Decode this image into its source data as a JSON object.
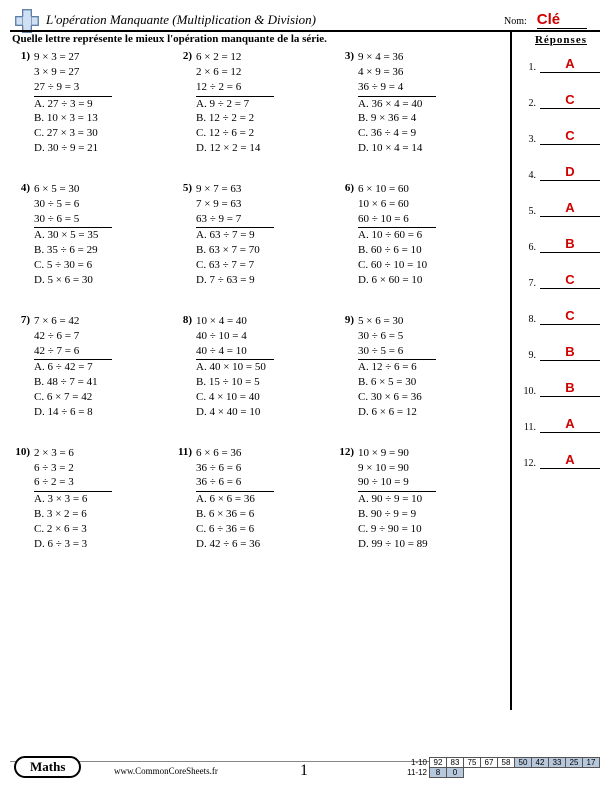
{
  "header": {
    "title": "L'opération Manquante (Multiplication & Division)",
    "nom_label": "Nom:",
    "cle": "Clé"
  },
  "instruction": "Quelle lettre représente le mieux l'opération manquante de la série.",
  "problems": [
    {
      "n": "1)",
      "lines": [
        "9 × 3 = 27",
        "3 × 9 = 27",
        "27 ÷ 9 = 3"
      ],
      "choices": [
        "A. 27 ÷ 3 = 9",
        "B. 10 × 3 = 13",
        "C. 27 × 3 = 30",
        "D. 30 ÷ 9 = 21"
      ]
    },
    {
      "n": "2)",
      "lines": [
        "6 × 2 = 12",
        "2 × 6 = 12",
        "12 ÷ 2 = 6"
      ],
      "choices": [
        "A. 9 ÷ 2 = 7",
        "B. 12 ÷ 2 = 2",
        "C. 12 ÷ 6 = 2",
        "D. 12 × 2 = 14"
      ]
    },
    {
      "n": "3)",
      "lines": [
        "9 × 4 = 36",
        "4 × 9 = 36",
        "36 ÷ 9 = 4"
      ],
      "choices": [
        "A. 36 × 4 = 40",
        "B. 9 × 36 = 4",
        "C. 36 ÷ 4 = 9",
        "D. 10 × 4 = 14"
      ]
    },
    {
      "n": "4)",
      "lines": [
        "6 × 5 = 30",
        "30 ÷ 5 = 6",
        "30 ÷ 6 = 5"
      ],
      "choices": [
        "A. 30 × 5 = 35",
        "B. 35 ÷ 6 = 29",
        "C. 5 ÷ 30 = 6",
        "D. 5 × 6 = 30"
      ]
    },
    {
      "n": "5)",
      "lines": [
        "9 × 7 = 63",
        "7 × 9 = 63",
        "63 ÷ 9 = 7"
      ],
      "choices": [
        "A. 63 ÷ 7 = 9",
        "B. 63 × 7 = 70",
        "C. 63 ÷ 7 = 7",
        "D. 7 ÷ 63 = 9"
      ]
    },
    {
      "n": "6)",
      "lines": [
        "6 × 10 = 60",
        "10 × 6 = 60",
        "60 ÷ 10 = 6"
      ],
      "choices": [
        "A. 10 ÷ 60 = 6",
        "B. 60 ÷ 6 = 10",
        "C. 60 ÷ 10 = 10",
        "D. 6 × 60 = 10"
      ]
    },
    {
      "n": "7)",
      "lines": [
        "7 × 6 = 42",
        "42 ÷ 6 = 7",
        "42 ÷ 7 = 6"
      ],
      "choices": [
        "A. 6 ÷ 42 = 7",
        "B. 48 ÷ 7 = 41",
        "C. 6 × 7 = 42",
        "D. 14 ÷ 6 = 8"
      ]
    },
    {
      "n": "8)",
      "lines": [
        "10 × 4 = 40",
        "40 ÷ 10 = 4",
        "40 ÷ 4 = 10"
      ],
      "choices": [
        "A. 40 × 10 = 50",
        "B. 15 ÷ 10 = 5",
        "C. 4 × 10 = 40",
        "D. 4 × 40 = 10"
      ]
    },
    {
      "n": "9)",
      "lines": [
        "5 × 6 = 30",
        "30 ÷ 6 = 5",
        "30 ÷ 5 = 6"
      ],
      "choices": [
        "A. 12 ÷ 6 = 6",
        "B. 6 × 5 = 30",
        "C. 30 × 6 = 36",
        "D. 6 × 6 = 12"
      ]
    },
    {
      "n": "10)",
      "lines": [
        "2 × 3 = 6",
        "6 ÷ 3 = 2",
        "6 ÷ 2 = 3"
      ],
      "choices": [
        "A. 3 × 3 = 6",
        "B. 3 × 2 = 6",
        "C. 2 × 6 = 3",
        "D. 6 ÷ 3 = 3"
      ]
    },
    {
      "n": "11)",
      "lines": [
        "6 × 6 = 36",
        "36 ÷ 6 = 6",
        "36 ÷ 6 = 6"
      ],
      "choices": [
        "A. 6 × 6 = 36",
        "B. 6 × 36 = 6",
        "C. 6 ÷ 36 = 6",
        "D. 42 ÷ 6 = 36"
      ]
    },
    {
      "n": "12)",
      "lines": [
        "10 × 9 = 90",
        "9 × 10 = 90",
        "90 ÷ 10 = 9"
      ],
      "choices": [
        "A. 90 ÷ 9 = 10",
        "B. 90 ÷ 9 = 9",
        "C. 9 ÷ 90 = 10",
        "D. 99 ÷ 10 = 89"
      ]
    }
  ],
  "answers": {
    "header": "Réponses",
    "items": [
      "A",
      "C",
      "C",
      "D",
      "A",
      "B",
      "C",
      "C",
      "B",
      "B",
      "A",
      "A"
    ]
  },
  "footer": {
    "subject": "Maths",
    "site": "www.CommonCoreSheets.fr",
    "page": "1",
    "scores": {
      "row1_label": "1-10",
      "row1": [
        "92",
        "83",
        "75",
        "67",
        "58",
        "50",
        "42",
        "33",
        "25",
        "17"
      ],
      "row2_label": "11-12",
      "row2": [
        "8",
        "0"
      ]
    }
  },
  "colors": {
    "accent_red": "#d00000",
    "shade_blue": "#b8c8dc"
  }
}
